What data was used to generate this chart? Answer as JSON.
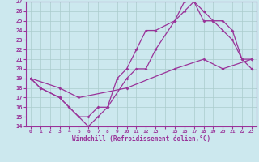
{
  "xlabel": "Windchill (Refroidissement éolien,°C)",
  "bg_color": "#cce8ee",
  "line_color": "#993399",
  "grid_color": "#aacccc",
  "xlim": [
    -0.5,
    23.5
  ],
  "ylim": [
    14,
    27
  ],
  "xticks": [
    0,
    1,
    2,
    3,
    4,
    5,
    6,
    7,
    8,
    9,
    10,
    11,
    12,
    13,
    15,
    16,
    17,
    18,
    19,
    20,
    21,
    22,
    23
  ],
  "yticks": [
    14,
    15,
    16,
    17,
    18,
    19,
    20,
    21,
    22,
    23,
    24,
    25,
    26,
    27
  ],
  "line1_x": [
    0,
    1,
    3,
    4,
    5,
    6,
    7,
    8,
    10,
    11,
    12,
    13,
    15,
    16,
    17,
    18,
    19,
    20,
    21,
    22,
    23
  ],
  "line1_y": [
    19,
    18,
    17,
    16,
    15,
    15,
    16,
    16,
    19,
    20,
    20,
    22,
    25,
    27,
    27,
    25,
    25,
    24,
    23,
    21,
    21
  ],
  "line2_x": [
    0,
    1,
    3,
    5,
    6,
    7,
    8,
    9,
    10,
    11,
    12,
    13,
    15,
    16,
    17,
    18,
    19,
    20,
    21,
    22,
    23
  ],
  "line2_y": [
    19,
    18,
    17,
    15,
    14,
    15,
    16,
    19,
    20,
    22,
    24,
    24,
    25,
    26,
    27,
    26,
    25,
    25,
    24,
    21,
    20
  ],
  "line3_x": [
    0,
    3,
    5,
    10,
    15,
    18,
    20,
    23
  ],
  "line3_y": [
    19,
    18,
    17,
    18,
    20,
    21,
    20,
    21
  ]
}
